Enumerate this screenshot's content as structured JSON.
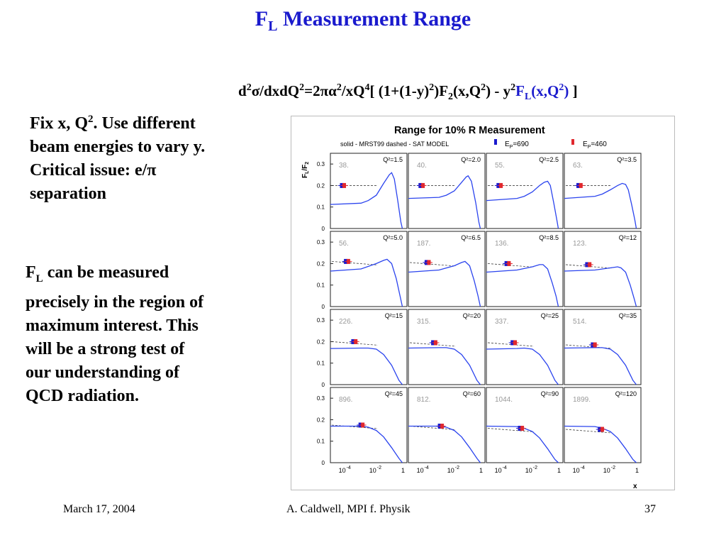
{
  "slide": {
    "title_main": "F",
    "title_sub": "L",
    "title_rest": " Measurement Range",
    "formula": {
      "p1": "d",
      "p1_sup": "2",
      "p2": "σ/dxdQ",
      "p2_sup": "2",
      "p3": "=2πα",
      "p3_sup": "2",
      "p4": "/xQ",
      "p4_sup": "4",
      "p5": "[ (1+(1-y)",
      "p5_sup": "2",
      "p6": ")F",
      "p6_sub": "2",
      "p7": "(x,Q",
      "p7_sup": "2",
      "p8": ") - y",
      "p8_sup": "2",
      "fl_main": "F",
      "fl_sub": "L",
      "fl_rest": "(x,Q",
      "fl_sup": "2",
      "fl_close": ")",
      "end": " ]"
    },
    "left_text_1": {
      "line1": "Fix x, Q",
      "line1_sup": "2",
      "line1_rest": ".  Use different beam energies to vary y.  Critical issue: e/π separation"
    },
    "left_text_2": {
      "fl_main": "F",
      "fl_sub": "L",
      "rest": " can be measured precisely in the region of maximum interest.  This will be a strong test of our understanding of QCD radiation."
    }
  },
  "figure": {
    "title": "Range for 10% R Measurement",
    "legend_left": "solid - MRST99   dashed - SAT MODEL",
    "legend_ep1": "E",
    "legend_ep1_sub": "P",
    "legend_ep1_val": "=690",
    "legend_ep2": "E",
    "legend_ep2_sub": "P",
    "legend_ep2_val": "=460",
    "ylabel_main": "F",
    "ylabel_sub1": "L",
    "ylabel_sep": "/F",
    "ylabel_sub2": "2",
    "xlabel": "x",
    "yticks": [
      "0.3",
      "0.2",
      "0.1",
      "0"
    ],
    "xticks": [
      "10",
      "-4",
      "10",
      "-2",
      "1"
    ],
    "colors": {
      "curve": "#2b44ee",
      "dashed": "#444444",
      "ep1": "#1a1acd",
      "ep2": "#e0282e",
      "frame": "#222222"
    }
  },
  "chart_data": {
    "type": "line",
    "title": "Range for 10% R Measurement",
    "xlabel": "x",
    "ylabel": "FL/F2",
    "ylim": [
      0,
      0.35
    ],
    "xscale": "log",
    "xlim": [
      1e-05,
      1
    ],
    "panels": [
      {
        "q2": "Q²=1.5",
        "num": "38.",
        "curve": [
          [
            1e-05,
            0.112
          ],
          [
            0.001,
            0.118
          ],
          [
            0.003,
            0.13
          ],
          [
            0.01,
            0.155
          ],
          [
            0.03,
            0.21
          ],
          [
            0.07,
            0.25
          ],
          [
            0.1,
            0.26
          ],
          [
            0.15,
            0.23
          ],
          [
            0.25,
            0.13
          ],
          [
            0.4,
            0.03
          ],
          [
            0.5,
            0.0
          ]
        ],
        "points_x": [
          5.5e-05,
          8e-05
        ],
        "point_y": 0.2
      },
      {
        "q2": "Q²=2.0",
        "num": "40.",
        "curve": [
          [
            1e-05,
            0.14
          ],
          [
            0.001,
            0.145
          ],
          [
            0.003,
            0.155
          ],
          [
            0.01,
            0.175
          ],
          [
            0.03,
            0.215
          ],
          [
            0.06,
            0.24
          ],
          [
            0.08,
            0.245
          ],
          [
            0.13,
            0.22
          ],
          [
            0.25,
            0.12
          ],
          [
            0.4,
            0.03
          ],
          [
            0.5,
            0.0
          ]
        ],
        "points_x": [
          6e-05,
          9e-05
        ],
        "point_y": 0.2
      },
      {
        "q2": "Q²=2.5",
        "num": "55.",
        "curve": [
          [
            1e-05,
            0.13
          ],
          [
            0.001,
            0.14
          ],
          [
            0.003,
            0.15
          ],
          [
            0.01,
            0.17
          ],
          [
            0.03,
            0.2
          ],
          [
            0.06,
            0.215
          ],
          [
            0.1,
            0.22
          ],
          [
            0.15,
            0.2
          ],
          [
            0.25,
            0.12
          ],
          [
            0.4,
            0.04
          ],
          [
            0.5,
            0.0
          ]
        ],
        "points_x": [
          6e-05,
          9e-05
        ],
        "point_y": 0.2
      },
      {
        "q2": "Q²=3.5",
        "num": "63.",
        "curve": [
          [
            1e-05,
            0.14
          ],
          [
            0.001,
            0.15
          ],
          [
            0.003,
            0.16
          ],
          [
            0.01,
            0.18
          ],
          [
            0.03,
            0.2
          ],
          [
            0.06,
            0.21
          ],
          [
            0.1,
            0.205
          ],
          [
            0.15,
            0.18
          ],
          [
            0.25,
            0.11
          ],
          [
            0.4,
            0.04
          ],
          [
            0.5,
            0.0
          ]
        ],
        "points_x": [
          8e-05,
          0.00012
        ],
        "point_y": 0.2
      },
      {
        "q2": "Q²=5.0",
        "num": "56.",
        "curve": [
          [
            1e-05,
            0.165
          ],
          [
            0.001,
            0.175
          ],
          [
            0.01,
            0.2
          ],
          [
            0.03,
            0.215
          ],
          [
            0.05,
            0.22
          ],
          [
            0.1,
            0.2
          ],
          [
            0.2,
            0.13
          ],
          [
            0.35,
            0.05
          ],
          [
            0.5,
            0.0
          ]
        ],
        "points_x": [
          0.0001,
          0.00015
        ],
        "point_y": 0.21
      },
      {
        "q2": "Q²=6.5",
        "num": "187.",
        "curve": [
          [
            1e-05,
            0.16
          ],
          [
            0.001,
            0.17
          ],
          [
            0.01,
            0.19
          ],
          [
            0.03,
            0.205
          ],
          [
            0.05,
            0.21
          ],
          [
            0.1,
            0.19
          ],
          [
            0.2,
            0.12
          ],
          [
            0.35,
            0.05
          ],
          [
            0.5,
            0.0
          ]
        ],
        "points_x": [
          0.00015,
          0.00022
        ],
        "point_y": 0.205
      },
      {
        "q2": "Q²=8.5",
        "num": "136.",
        "curve": [
          [
            1e-05,
            0.16
          ],
          [
            0.001,
            0.17
          ],
          [
            0.01,
            0.185
          ],
          [
            0.03,
            0.195
          ],
          [
            0.05,
            0.195
          ],
          [
            0.1,
            0.175
          ],
          [
            0.2,
            0.11
          ],
          [
            0.35,
            0.05
          ],
          [
            0.5,
            0.0
          ]
        ],
        "points_x": [
          0.0002,
          0.0003
        ],
        "point_y": 0.2
      },
      {
        "q2": "Q²=12",
        "num": "123.",
        "curve": [
          [
            1e-05,
            0.165
          ],
          [
            0.001,
            0.17
          ],
          [
            0.01,
            0.18
          ],
          [
            0.03,
            0.185
          ],
          [
            0.05,
            0.18
          ],
          [
            0.1,
            0.16
          ],
          [
            0.2,
            0.1
          ],
          [
            0.35,
            0.04
          ],
          [
            0.5,
            0.0
          ]
        ],
        "points_x": [
          0.0003,
          0.00045
        ],
        "point_y": 0.195
      },
      {
        "q2": "Q²=15",
        "num": "226.",
        "curve": [
          [
            1e-05,
            0.168
          ],
          [
            0.001,
            0.17
          ],
          [
            0.003,
            0.17
          ],
          [
            0.01,
            0.165
          ],
          [
            0.03,
            0.14
          ],
          [
            0.1,
            0.09
          ],
          [
            0.3,
            0.02
          ],
          [
            0.5,
            0.0
          ]
        ],
        "points_x": [
          0.0003,
          0.00045
        ],
        "point_y": 0.2
      },
      {
        "q2": "Q²=20",
        "num": "315.",
        "curve": [
          [
            1e-05,
            0.17
          ],
          [
            0.001,
            0.172
          ],
          [
            0.003,
            0.172
          ],
          [
            0.01,
            0.165
          ],
          [
            0.03,
            0.14
          ],
          [
            0.1,
            0.09
          ],
          [
            0.3,
            0.02
          ],
          [
            0.5,
            0.0
          ]
        ],
        "points_x": [
          0.0004,
          0.0006
        ],
        "point_y": 0.195
      },
      {
        "q2": "Q²=25",
        "num": "337.",
        "curve": [
          [
            1e-05,
            0.165
          ],
          [
            0.001,
            0.168
          ],
          [
            0.003,
            0.17
          ],
          [
            0.01,
            0.165
          ],
          [
            0.03,
            0.14
          ],
          [
            0.1,
            0.09
          ],
          [
            0.3,
            0.02
          ],
          [
            0.5,
            0.0
          ]
        ],
        "points_x": [
          0.0005,
          0.00075
        ],
        "point_y": 0.195
      },
      {
        "q2": "Q²=35",
        "num": "514.",
        "curve": [
          [
            1e-05,
            0.17
          ],
          [
            0.001,
            0.172
          ],
          [
            0.003,
            0.172
          ],
          [
            0.01,
            0.165
          ],
          [
            0.03,
            0.14
          ],
          [
            0.1,
            0.09
          ],
          [
            0.3,
            0.02
          ],
          [
            0.5,
            0.0
          ]
        ],
        "points_x": [
          0.0007,
          0.001
        ],
        "point_y": 0.185
      },
      {
        "q2": "Q²=45",
        "num": "896.",
        "curve": [
          [
            1e-05,
            0.17
          ],
          [
            0.001,
            0.17
          ],
          [
            0.003,
            0.165
          ],
          [
            0.01,
            0.15
          ],
          [
            0.03,
            0.12
          ],
          [
            0.1,
            0.07
          ],
          [
            0.3,
            0.02
          ],
          [
            0.5,
            0.0
          ]
        ],
        "points_x": [
          0.0009,
          0.0013
        ],
        "point_y": 0.175
      },
      {
        "q2": "Q²=60",
        "num": "812.",
        "curve": [
          [
            1e-05,
            0.17
          ],
          [
            0.001,
            0.17
          ],
          [
            0.003,
            0.165
          ],
          [
            0.01,
            0.15
          ],
          [
            0.03,
            0.12
          ],
          [
            0.1,
            0.07
          ],
          [
            0.3,
            0.02
          ],
          [
            0.5,
            0.0
          ]
        ],
        "points_x": [
          0.0011,
          0.0016
        ],
        "point_y": 0.17
      },
      {
        "q2": "Q²=90",
        "num": "1044.",
        "curve": [
          [
            1e-05,
            0.17
          ],
          [
            0.001,
            0.168
          ],
          [
            0.003,
            0.16
          ],
          [
            0.01,
            0.145
          ],
          [
            0.03,
            0.115
          ],
          [
            0.1,
            0.065
          ],
          [
            0.3,
            0.015
          ],
          [
            0.5,
            0.0
          ]
        ],
        "points_x": [
          0.0015,
          0.0022
        ],
        "point_y": 0.16
      },
      {
        "q2": "Q²=120",
        "num": "1899.",
        "curve": [
          [
            1e-05,
            0.17
          ],
          [
            0.001,
            0.168
          ],
          [
            0.003,
            0.16
          ],
          [
            0.01,
            0.145
          ],
          [
            0.03,
            0.115
          ],
          [
            0.1,
            0.065
          ],
          [
            0.3,
            0.015
          ],
          [
            0.5,
            0.0
          ]
        ],
        "points_x": [
          0.002,
          0.003
        ],
        "point_y": 0.155
      }
    ]
  },
  "footer": {
    "date": "March 17, 2004",
    "author": "A. Caldwell, MPI f. Physik",
    "page": "37"
  }
}
